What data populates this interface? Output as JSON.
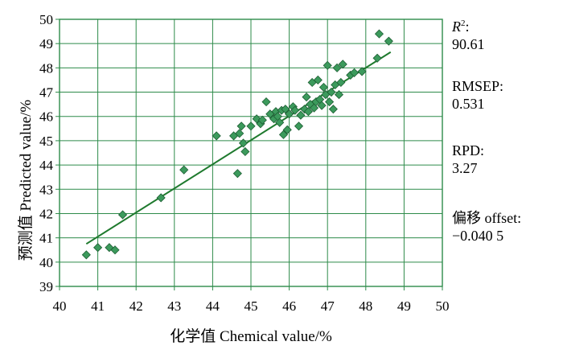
{
  "chart_data": {
    "type": "scatter",
    "xlabel": "化学值  Chemical value/%",
    "ylabel": "预测值  Predicted value/%",
    "xlim": [
      40,
      50
    ],
    "ylim": [
      39,
      50
    ],
    "xticks": [
      "40",
      "41",
      "42",
      "43",
      "44",
      "45",
      "46",
      "47",
      "48",
      "49",
      "50"
    ],
    "yticks": [
      "39",
      "40",
      "41",
      "42",
      "43",
      "44",
      "45",
      "46",
      "47",
      "48",
      "49",
      "50"
    ],
    "grid": true,
    "colors": {
      "point": "#3c9a5c",
      "point_edge": "#1d5e33",
      "line": "#1f7a2e",
      "grid": "#2e8b4a",
      "axis": "#2e8b4a"
    },
    "fit_line": {
      "x": [
        40.7,
        48.65
      ],
      "y": [
        40.75,
        48.65
      ]
    },
    "points": [
      {
        "x": 40.7,
        "y": 40.3
      },
      {
        "x": 41.0,
        "y": 40.6
      },
      {
        "x": 41.3,
        "y": 40.6
      },
      {
        "x": 41.45,
        "y": 40.5
      },
      {
        "x": 41.65,
        "y": 41.95
      },
      {
        "x": 42.65,
        "y": 42.65
      },
      {
        "x": 43.25,
        "y": 43.8
      },
      {
        "x": 44.1,
        "y": 45.2
      },
      {
        "x": 44.55,
        "y": 45.2
      },
      {
        "x": 44.65,
        "y": 43.65
      },
      {
        "x": 44.7,
        "y": 45.3
      },
      {
        "x": 44.75,
        "y": 45.6
      },
      {
        "x": 44.8,
        "y": 44.9
      },
      {
        "x": 44.85,
        "y": 44.55
      },
      {
        "x": 45.0,
        "y": 45.6
      },
      {
        "x": 45.15,
        "y": 45.9
      },
      {
        "x": 45.25,
        "y": 45.7
      },
      {
        "x": 45.3,
        "y": 45.85
      },
      {
        "x": 45.4,
        "y": 46.6
      },
      {
        "x": 45.5,
        "y": 46.1
      },
      {
        "x": 45.6,
        "y": 45.9
      },
      {
        "x": 45.65,
        "y": 46.2
      },
      {
        "x": 45.7,
        "y": 46.0
      },
      {
        "x": 45.75,
        "y": 45.75
      },
      {
        "x": 45.8,
        "y": 46.25
      },
      {
        "x": 45.85,
        "y": 45.25
      },
      {
        "x": 45.9,
        "y": 46.3
      },
      {
        "x": 45.95,
        "y": 45.45
      },
      {
        "x": 46.0,
        "y": 46.1
      },
      {
        "x": 46.1,
        "y": 46.4
      },
      {
        "x": 46.15,
        "y": 46.25
      },
      {
        "x": 46.25,
        "y": 45.6
      },
      {
        "x": 46.3,
        "y": 46.05
      },
      {
        "x": 46.4,
        "y": 46.3
      },
      {
        "x": 46.45,
        "y": 46.8
      },
      {
        "x": 46.5,
        "y": 46.2
      },
      {
        "x": 46.55,
        "y": 46.5
      },
      {
        "x": 46.6,
        "y": 47.4
      },
      {
        "x": 46.65,
        "y": 46.35
      },
      {
        "x": 46.7,
        "y": 46.6
      },
      {
        "x": 46.75,
        "y": 47.5
      },
      {
        "x": 46.8,
        "y": 46.7
      },
      {
        "x": 46.85,
        "y": 46.45
      },
      {
        "x": 46.9,
        "y": 47.2
      },
      {
        "x": 46.95,
        "y": 46.9
      },
      {
        "x": 47.0,
        "y": 48.1
      },
      {
        "x": 47.05,
        "y": 46.6
      },
      {
        "x": 47.1,
        "y": 47.0
      },
      {
        "x": 47.15,
        "y": 46.3
      },
      {
        "x": 47.2,
        "y": 47.3
      },
      {
        "x": 47.25,
        "y": 48.0
      },
      {
        "x": 47.3,
        "y": 46.9
      },
      {
        "x": 47.35,
        "y": 47.4
      },
      {
        "x": 47.4,
        "y": 48.15
      },
      {
        "x": 47.6,
        "y": 47.7
      },
      {
        "x": 47.7,
        "y": 47.8
      },
      {
        "x": 47.9,
        "y": 47.85
      },
      {
        "x": 48.3,
        "y": 48.4
      },
      {
        "x": 48.35,
        "y": 49.4
      },
      {
        "x": 48.6,
        "y": 49.1
      }
    ]
  },
  "stats": {
    "r2_label": "R",
    "r2_sup": "2",
    "r2_colon": ":",
    "r2_value": "90.61",
    "rmsep_label": "RMSEP:",
    "rmsep_value": "0.531",
    "rpd_label": "RPD:",
    "rpd_value": "3.27",
    "offset_label": "偏移  offset:",
    "offset_value": "−0.040 5"
  }
}
